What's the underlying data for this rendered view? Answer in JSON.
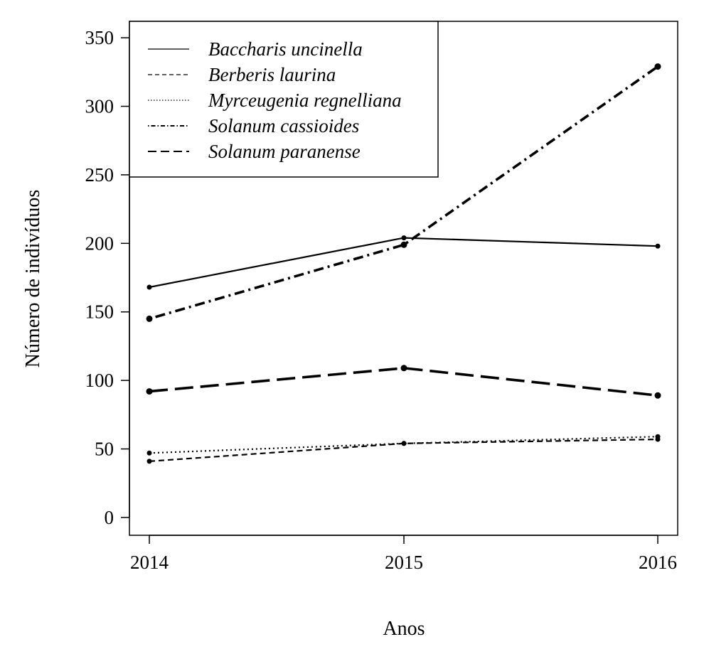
{
  "chart_data": {
    "type": "line",
    "x": [
      "2014",
      "2015",
      "2016"
    ],
    "xlabel": "Anos",
    "ylabel": "Número de indivíduos",
    "ylim": [
      -13,
      362
    ],
    "y_ticks": [
      0,
      50,
      100,
      150,
      200,
      250,
      300,
      350
    ],
    "grid": false,
    "legend_position": "top-left",
    "series": [
      {
        "name": "Baccharis uncinella",
        "values": [
          168,
          204,
          198
        ],
        "line_style": "solid",
        "line_weight": "normal",
        "color": "#000000"
      },
      {
        "name": "Berberis laurina",
        "values": [
          41,
          54,
          57
        ],
        "line_style": "dashed",
        "line_weight": "normal",
        "color": "#000000"
      },
      {
        "name": "Myrceugenia regnelliana",
        "values": [
          47,
          54,
          59
        ],
        "line_style": "dotted",
        "line_weight": "normal",
        "color": "#000000"
      },
      {
        "name": "Solanum cassioides",
        "values": [
          145,
          199,
          329
        ],
        "line_style": "dotdash",
        "line_weight": "bold",
        "color": "#000000"
      },
      {
        "name": "Solanum paranense",
        "values": [
          92,
          109,
          89
        ],
        "line_style": "longdash",
        "line_weight": "bold",
        "color": "#000000"
      }
    ]
  }
}
